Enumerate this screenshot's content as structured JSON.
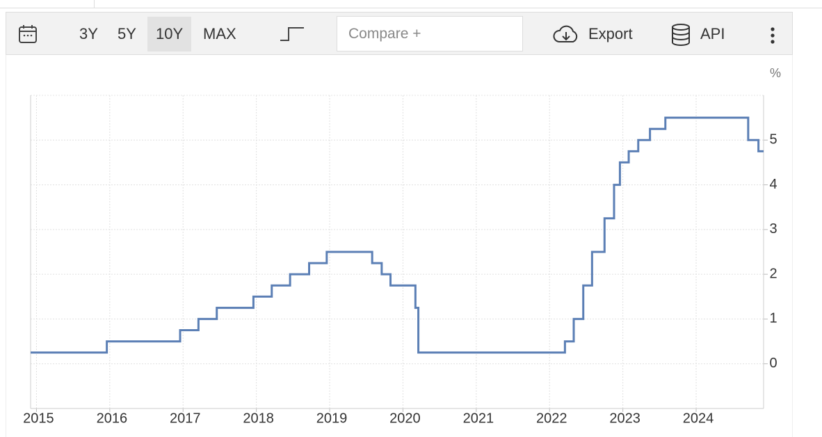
{
  "toolbar": {
    "ranges": [
      "3Y",
      "5Y",
      "10Y",
      "MAX"
    ],
    "active_range": "10Y",
    "compare": "Compare +",
    "export": "Export",
    "api": "API"
  },
  "chart_data": {
    "type": "line",
    "step": "post",
    "ylabel": "%",
    "color": "#5b7fb5",
    "grid": true,
    "x": [
      2014.92,
      2015.96,
      2016.96,
      2017.21,
      2017.46,
      2017.96,
      2018.21,
      2018.46,
      2018.72,
      2018.96,
      2019.58,
      2019.71,
      2019.83,
      2020.17,
      2020.21,
      2022.21,
      2022.33,
      2022.46,
      2022.58,
      2022.75,
      2022.88,
      2022.96,
      2023.08,
      2023.21,
      2023.37,
      2023.58,
      2024.71,
      2024.85,
      2024.92
    ],
    "values": [
      0.25,
      0.5,
      0.75,
      1.0,
      1.25,
      1.5,
      1.75,
      2.0,
      2.25,
      2.5,
      2.25,
      2.0,
      1.75,
      1.25,
      0.25,
      0.5,
      1.0,
      1.75,
      2.5,
      3.25,
      4.0,
      4.5,
      4.75,
      5.0,
      5.25,
      5.5,
      5.0,
      4.75,
      4.75
    ],
    "xlim": [
      2014.92,
      2024.92
    ],
    "xticks": [
      2015,
      2016,
      2017,
      2018,
      2019,
      2020,
      2021,
      2022,
      2023,
      2024
    ],
    "ylim": [
      -1,
      6
    ],
    "yticks": [
      0,
      1,
      2,
      3,
      4,
      5
    ]
  }
}
